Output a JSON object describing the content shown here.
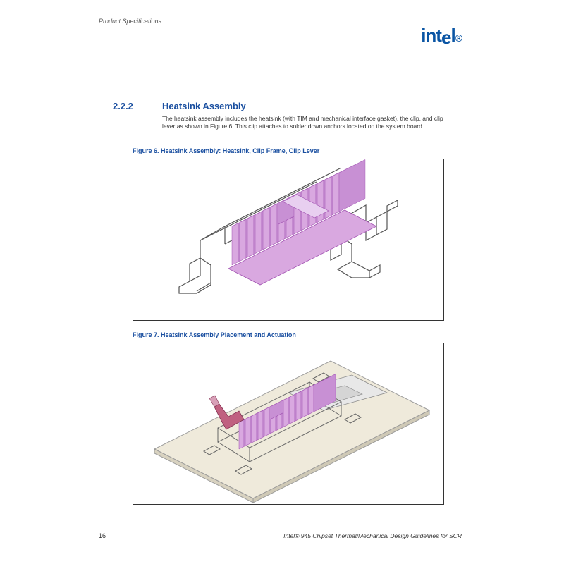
{
  "header": {
    "label": "Product Specifications",
    "logo_text": "intel",
    "logo_color": "#0a55a4"
  },
  "section": {
    "number": "2.2.2",
    "title": "Heatsink Assembly",
    "body": "The heatsink assembly includes the heatsink (with TIM and mechanical interface gasket), the clip, and clip lever as shown in Figure 6. This clip attaches to solder down anchors located on the system board."
  },
  "figures": {
    "fig6": {
      "caption": "Figure 6. Heatsink Assembly: Heatsink, Clip Frame, Clip Lever",
      "heatsink_fill": "#d9a8e0",
      "heatsink_stroke": "#a050b0",
      "frame_stroke": "#555555",
      "fin_count": 14
    },
    "fig7": {
      "caption": "Figure 7. Heatsink Assembly Placement and Actuation",
      "board_fill": "#efeadb",
      "board_stroke": "#999999",
      "chip_fill": "#e8e8e8",
      "heatsink_fill": "#d9a8e0",
      "heatsink_stroke": "#a050b0",
      "frame_stroke": "#666666",
      "lever_fill": "#c06080"
    }
  },
  "footer": {
    "page_number": "16",
    "doc_title": "Intel® 945 Chipset Thermal/Mechanical Design Guidelines for SCR"
  },
  "colors": {
    "heading": "#1a4fa0",
    "text": "#333333",
    "border": "#333333"
  }
}
